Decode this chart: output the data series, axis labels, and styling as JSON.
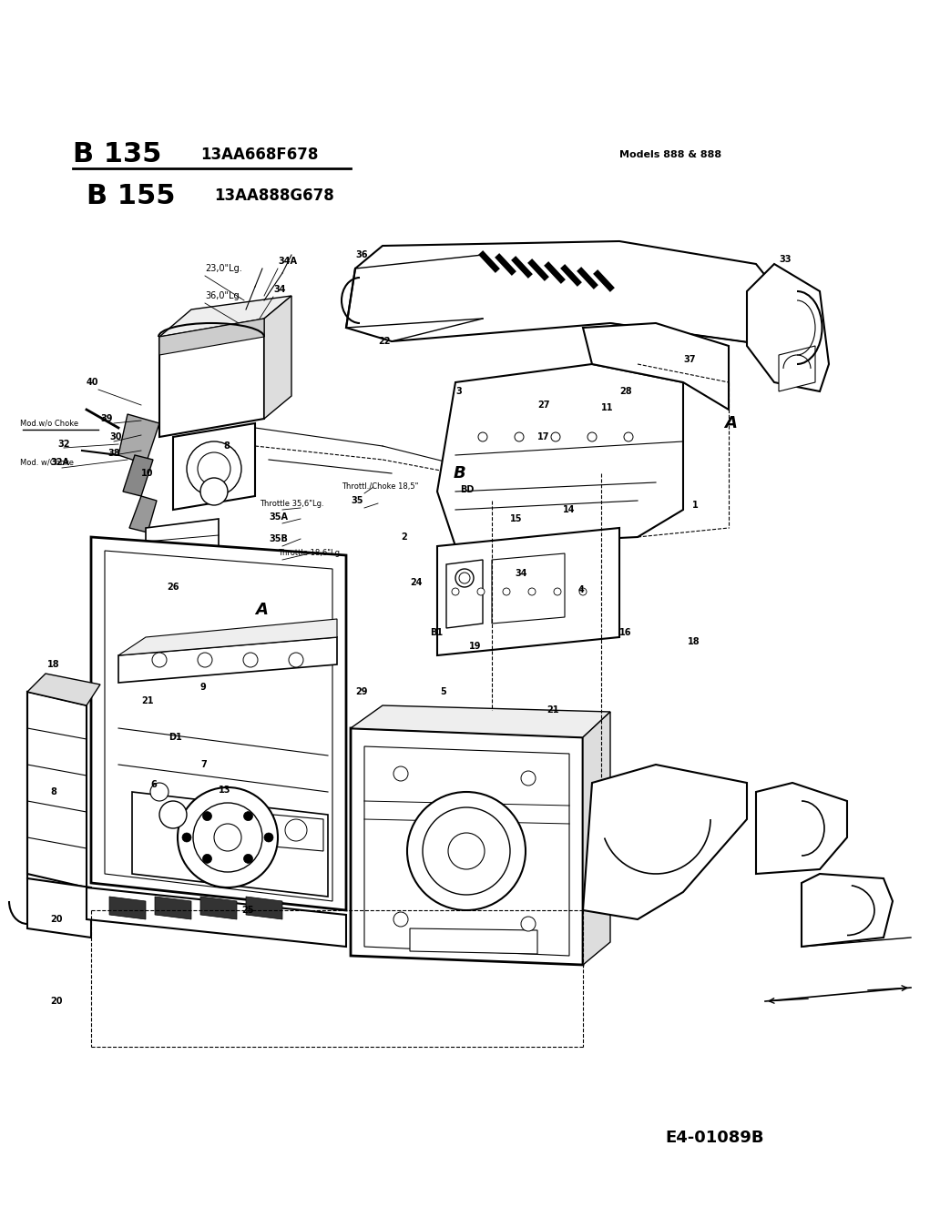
{
  "title_line1": "B 135",
  "title_code1": "13AA668F678",
  "title_line2": "B 155",
  "title_code2": "13AA888G678",
  "models_text": "Models 888 & 888",
  "footer_code": "E4-01089B",
  "bg_color": "#ffffff",
  "text_color": "#000000",
  "fig_width": 10.32,
  "fig_height": 13.48,
  "dpi": 100
}
